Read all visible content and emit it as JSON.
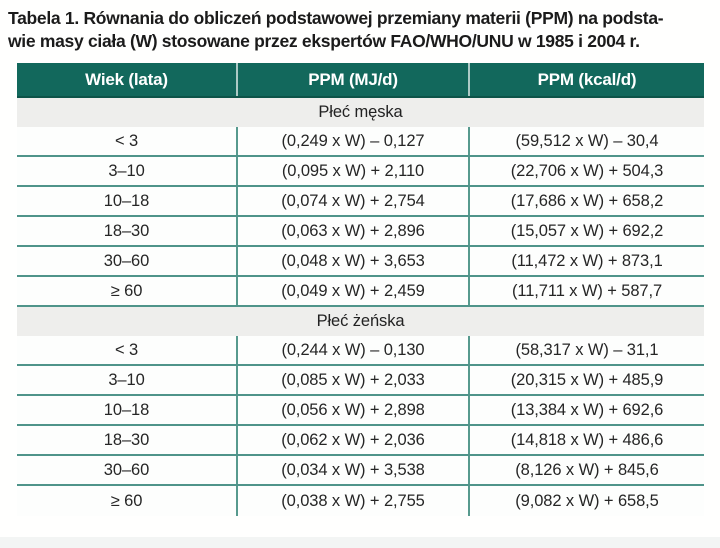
{
  "caption": {
    "line1": "Tabela 1. Równania do obliczeń podstawowej przemiany materii (PPM) na podsta-",
    "line2": "wie masy ciała (W) stosowane przez ekspertów FAO/WHO/UNU w 1985 i 2004 r."
  },
  "colors": {
    "header_bg": "#12685C",
    "header_edge": "#0D5449",
    "band_bg": "#EEEEEC",
    "line": "#4F948A",
    "vline": "#579A8E"
  },
  "table": {
    "columns": [
      "Wiek (lata)",
      "PPM (MJ/d)",
      "PPM (kcal/d)"
    ],
    "sections": [
      {
        "label": "Płeć męska",
        "rows": [
          {
            "age": "< 3",
            "mj": "(0,249 x W) – 0,127",
            "kcal": "(59,512 x W) – 30,4"
          },
          {
            "age": "3–10",
            "mj": "(0,095 x W) + 2,110",
            "kcal": "(22,706 x W) + 504,3"
          },
          {
            "age": "10–18",
            "mj": "(0,074 x W) + 2,754",
            "kcal": "(17,686 x W) + 658,2"
          },
          {
            "age": "18–30",
            "mj": "(0,063 x W) + 2,896",
            "kcal": "(15,057 x W) + 692,2"
          },
          {
            "age": "30–60",
            "mj": "(0,048 x W) + 3,653",
            "kcal": "(11,472 x W) + 873,1"
          },
          {
            "age": "≥ 60",
            "mj": "(0,049 x W) + 2,459",
            "kcal": "(11,711 x W) + 587,7"
          }
        ]
      },
      {
        "label": "Płeć żeńska",
        "rows": [
          {
            "age": "< 3",
            "mj": "(0,244 x W) – 0,130",
            "kcal": "(58,317 x W) – 31,1"
          },
          {
            "age": "3–10",
            "mj": "(0,085 x W) + 2,033",
            "kcal": "(20,315 x W) + 485,9"
          },
          {
            "age": "10–18",
            "mj": "(0,056 x W) + 2,898",
            "kcal": "(13,384 x W) + 692,6"
          },
          {
            "age": "18–30",
            "mj": "(0,062 x W) + 2,036",
            "kcal": "(14,818 x W) + 486,6"
          },
          {
            "age": "30–60",
            "mj": "(0,034 x W) + 3,538",
            "kcal": "(8,126 x W) + 845,6"
          },
          {
            "age": "≥ 60",
            "mj": "(0,038 x W) + 2,755",
            "kcal": "(9,082 x W) + 658,5"
          }
        ]
      }
    ]
  }
}
